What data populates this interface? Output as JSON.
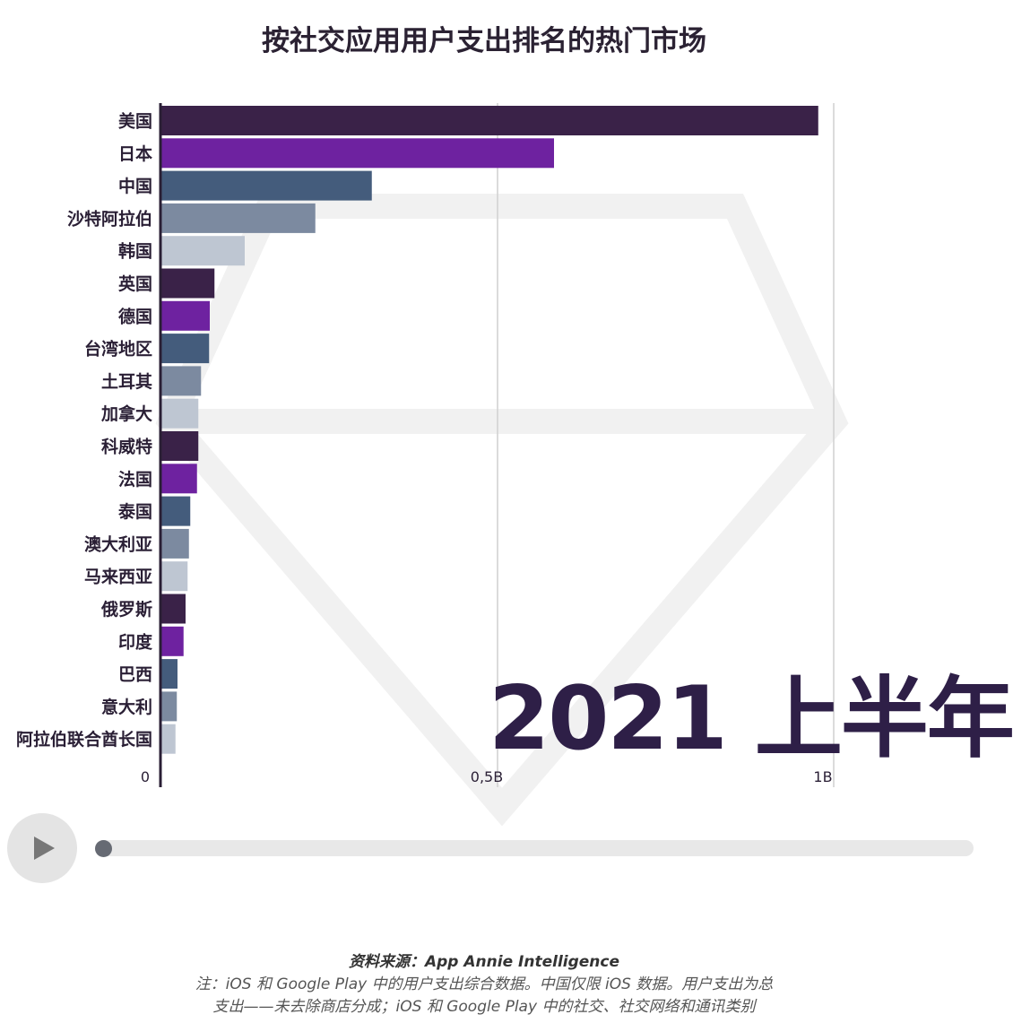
{
  "title": "按社交应用用户支出排名的热门市场",
  "period_label": "2021 上半年",
  "chart_data": {
    "type": "bar",
    "orientation": "horizontal",
    "title": "按社交应用用户支出排名的热门市场",
    "categories": [
      "美国",
      "日本",
      "中国",
      "沙特阿拉伯",
      "韩国",
      "英国",
      "德国",
      "台湾地区",
      "土耳其",
      "加拿大",
      "科威特",
      "法国",
      "泰国",
      "澳大利亚",
      "马来西亚",
      "俄罗斯",
      "印度",
      "巴西",
      "意大利",
      "阿拉伯联合酋长国"
    ],
    "values": [
      0.977,
      0.584,
      0.313,
      0.229,
      0.124,
      0.079,
      0.072,
      0.071,
      0.059,
      0.055,
      0.055,
      0.053,
      0.043,
      0.041,
      0.039,
      0.036,
      0.033,
      0.024,
      0.023,
      0.021
    ],
    "unit": "B (USD)",
    "xlim": [
      0,
      1.2
    ],
    "ticks": [
      {
        "value": 0,
        "label": "0"
      },
      {
        "value": 0.5,
        "label": "0,5B"
      },
      {
        "value": 1,
        "label": "1B"
      }
    ],
    "grid": true,
    "colors": [
      "#3a2248",
      "#6e22a0",
      "#445c7c",
      "#7c8aa0",
      "#bec6d2"
    ]
  },
  "player": {
    "play_icon": "play-icon",
    "progress": 0.0
  },
  "footer": {
    "source": "资料来源：App Annie Intelligence",
    "note_line1": "注：iOS 和 Google Play 中的用户支出综合数据。中国仅限 iOS 数据。用户支出为总",
    "note_line2": "支出——未去除商店分成；iOS 和 Google Play 中的社交、社交网络和通讯类别"
  }
}
